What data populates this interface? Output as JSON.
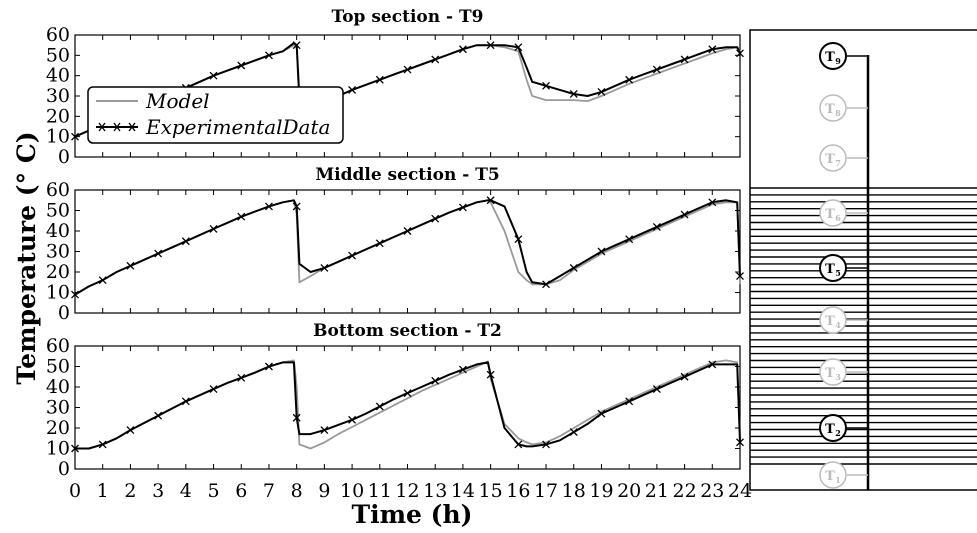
{
  "chart_data": [
    {
      "type": "line",
      "title": "Top section - T9",
      "x": [
        0,
        0.5,
        1,
        1.5,
        2,
        2.5,
        3,
        3.5,
        4,
        4.5,
        5,
        5.5,
        6,
        6.5,
        7,
        7.5,
        7.9,
        8.0,
        8.1,
        8.5,
        9,
        9.5,
        10,
        10.5,
        11,
        11.5,
        12,
        12.5,
        13,
        13.5,
        14,
        14.5,
        14.9,
        15,
        15.5,
        16,
        16.3,
        16.5,
        17,
        17.5,
        18,
        18.5,
        19,
        19.5,
        20,
        20.5,
        21,
        21.5,
        22,
        22.5,
        23,
        23.5,
        23.9,
        24
      ],
      "series": [
        {
          "name": "Model",
          "values": [
            10,
            13,
            16,
            19,
            22,
            25,
            28,
            31,
            34,
            37,
            40,
            42.5,
            45,
            47.5,
            50,
            52,
            55,
            54,
            24,
            25,
            28,
            30,
            33,
            35.5,
            38,
            40.5,
            43,
            45.5,
            48,
            50.5,
            53,
            55,
            55,
            55,
            54,
            52,
            38,
            30,
            28,
            28,
            28,
            27.5,
            30,
            33,
            36,
            38.5,
            41,
            43.5,
            46,
            48.5,
            51,
            53,
            54,
            52
          ]
        },
        {
          "name": "ExperimentalData",
          "values": [
            10,
            13,
            16,
            19,
            22,
            25,
            28,
            31,
            34,
            37,
            40,
            42.5,
            45,
            47.5,
            50,
            52,
            56,
            55,
            29,
            26,
            28,
            30,
            33,
            35.5,
            38,
            40.5,
            43,
            45.5,
            48,
            50.5,
            53,
            55,
            55,
            55,
            55,
            54,
            44,
            37,
            35,
            33,
            31,
            30,
            32,
            35,
            38,
            40.5,
            43,
            45.5,
            48,
            50.5,
            53,
            54,
            54,
            51
          ]
        }
      ],
      "xlim": [
        0,
        24
      ],
      "ylim": [
        0,
        60
      ],
      "yticks": [
        "0",
        "10",
        "20",
        "30",
        "40",
        "50",
        "60"
      ],
      "legend": "upper-left"
    },
    {
      "type": "line",
      "title": "Middle section - T5",
      "x": [
        0,
        0.5,
        1,
        1.5,
        2,
        2.5,
        3,
        3.5,
        4,
        4.5,
        5,
        5.5,
        6,
        6.5,
        7,
        7.5,
        7.9,
        8.0,
        8.1,
        8.5,
        9,
        9.5,
        10,
        10.5,
        11,
        11.5,
        12,
        12.5,
        13,
        13.5,
        14,
        14.5,
        14.9,
        15,
        15.5,
        16,
        16.3,
        16.5,
        17,
        17.5,
        18,
        18.5,
        19,
        19.5,
        20,
        20.5,
        21,
        21.5,
        22,
        22.5,
        23,
        23.5,
        23.9,
        24
      ],
      "series": [
        {
          "name": "Model",
          "values": [
            9,
            13,
            16,
            20,
            23,
            26,
            29,
            32,
            35,
            38,
            41,
            44,
            47,
            49.5,
            52,
            54,
            55,
            48,
            15,
            18,
            22,
            25,
            28,
            31,
            34,
            37,
            40,
            43,
            46,
            49,
            51.5,
            54,
            55,
            54,
            40,
            20,
            16,
            14,
            14,
            16,
            21,
            25,
            29,
            32,
            35,
            38,
            41,
            44,
            47,
            50,
            53,
            54,
            54,
            14
          ]
        },
        {
          "name": "ExperimentalData",
          "values": [
            9,
            13,
            16,
            20,
            23,
            26,
            29,
            32,
            35,
            38,
            41,
            44,
            47,
            49.5,
            52,
            54,
            55,
            52,
            24,
            20,
            22,
            25,
            28,
            31,
            34,
            37,
            40,
            43,
            46,
            49,
            51.5,
            54,
            55,
            55,
            52,
            36,
            20,
            15,
            14,
            18,
            22,
            26,
            30,
            33,
            36,
            39,
            42,
            45,
            48,
            51,
            54,
            55,
            54,
            18
          ]
        }
      ],
      "xlim": [
        0,
        24
      ],
      "ylim": [
        0,
        60
      ],
      "yticks": [
        "0",
        "10",
        "20",
        "30",
        "40",
        "50",
        "60"
      ]
    },
    {
      "type": "line",
      "title": "Bottom section - T2",
      "x": [
        0,
        0.5,
        1,
        1.5,
        2,
        2.5,
        3,
        3.5,
        4,
        4.5,
        5,
        5.5,
        6,
        6.5,
        7,
        7.5,
        7.9,
        8.0,
        8.1,
        8.5,
        9,
        9.5,
        10,
        10.5,
        11,
        11.5,
        12,
        12.5,
        13,
        13.5,
        14,
        14.5,
        14.9,
        15,
        15.5,
        16,
        16.3,
        16.5,
        17,
        17.5,
        18,
        18.5,
        19,
        19.5,
        20,
        20.5,
        21,
        21.5,
        22,
        22.5,
        23,
        23.5,
        23.9,
        24
      ],
      "series": [
        {
          "name": "Model",
          "values": [
            10,
            10,
            12,
            15,
            19,
            22.5,
            26,
            29.5,
            33,
            36,
            39,
            42,
            44.5,
            47,
            50,
            52,
            53,
            40,
            12,
            10,
            13,
            17,
            20.5,
            24,
            27.5,
            31,
            34.5,
            38,
            41,
            44,
            47,
            50,
            52.5,
            44,
            22,
            15,
            13,
            12,
            13,
            16,
            20,
            24,
            28,
            31,
            34,
            37,
            40,
            43,
            46,
            49,
            52,
            53,
            52,
            14
          ]
        },
        {
          "name": "ExperimentalData",
          "values": [
            10,
            10,
            12,
            15,
            19,
            22.5,
            26,
            29.5,
            33,
            36,
            39,
            42,
            44.5,
            47,
            50,
            52,
            52,
            25,
            17,
            17,
            19,
            21.5,
            24,
            27,
            30.5,
            34,
            37,
            40,
            43,
            46,
            48.5,
            51,
            52,
            46,
            20,
            12,
            11,
            11,
            12,
            14,
            18,
            22,
            27,
            30,
            33,
            36,
            39,
            42,
            45,
            48,
            51,
            51,
            51,
            13
          ]
        }
      ],
      "xlim": [
        0,
        24
      ],
      "ylim": [
        0,
        60
      ],
      "yticks": [
        "0",
        "10",
        "20",
        "30",
        "40",
        "50",
        "60"
      ]
    }
  ],
  "xticks": [
    "0",
    "1",
    "2",
    "3",
    "4",
    "5",
    "6",
    "7",
    "8",
    "9",
    "10",
    "11",
    "12",
    "13",
    "14",
    "15",
    "16",
    "17",
    "18",
    "19",
    "20",
    "21",
    "22",
    "23",
    "24"
  ],
  "xlabel": "Time (h)",
  "ylabel": "Temperature (° C)",
  "legend_labels": [
    "Model",
    "ExperimentalData"
  ],
  "colors": {
    "model": "#999999",
    "experimental": "#000000"
  },
  "tank": {
    "sensors": [
      {
        "num": "T",
        "sub": "9",
        "active": true
      },
      {
        "num": "T",
        "sub": "8",
        "active": false
      },
      {
        "num": "T",
        "sub": "7",
        "active": false
      },
      {
        "num": "T",
        "sub": "6",
        "active": false
      },
      {
        "num": "T",
        "sub": "5",
        "active": true
      },
      {
        "num": "T",
        "sub": "4",
        "active": false
      },
      {
        "num": "T",
        "sub": "3",
        "active": false
      },
      {
        "num": "T",
        "sub": "2",
        "active": true
      },
      {
        "num": "T",
        "sub": "1",
        "active": false
      }
    ]
  }
}
